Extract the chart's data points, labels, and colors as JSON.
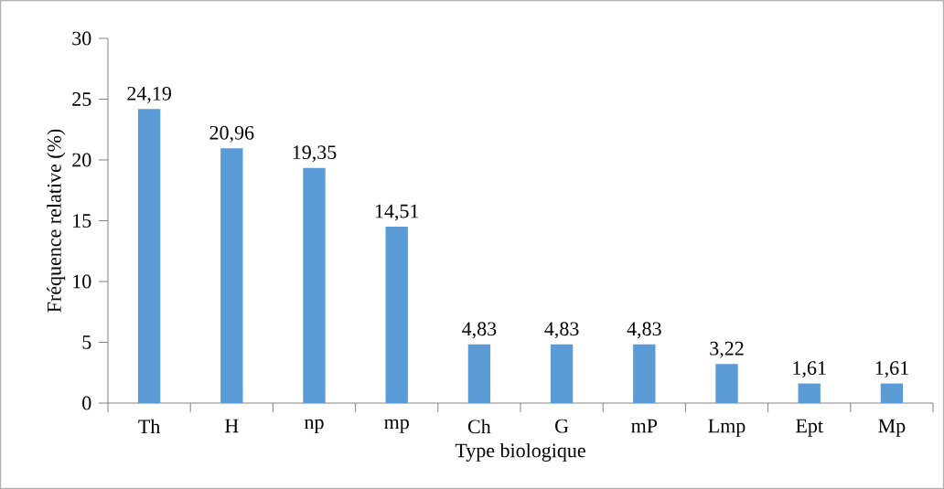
{
  "chart_data": {
    "type": "bar",
    "xlabel": "Type biologique",
    "ylabel": "Fréquence relative (%)",
    "categories": [
      "Th",
      "H",
      "np",
      "mp",
      "Ch",
      "G",
      "mP",
      "Lmp",
      "Ept",
      "Mp"
    ],
    "values": [
      24.19,
      20.96,
      19.35,
      14.51,
      4.83,
      4.83,
      4.83,
      3.22,
      1.61,
      1.61
    ],
    "value_labels": [
      "24,19",
      "20,96",
      "19,35",
      "14,51",
      "4,83",
      "4,83",
      "4,83",
      "3,22",
      "1,61",
      "1,61"
    ],
    "color": "#5b9bd5",
    "ylim": [
      0,
      30
    ],
    "yticks": [
      0,
      5,
      10,
      15,
      20,
      25,
      30
    ]
  }
}
